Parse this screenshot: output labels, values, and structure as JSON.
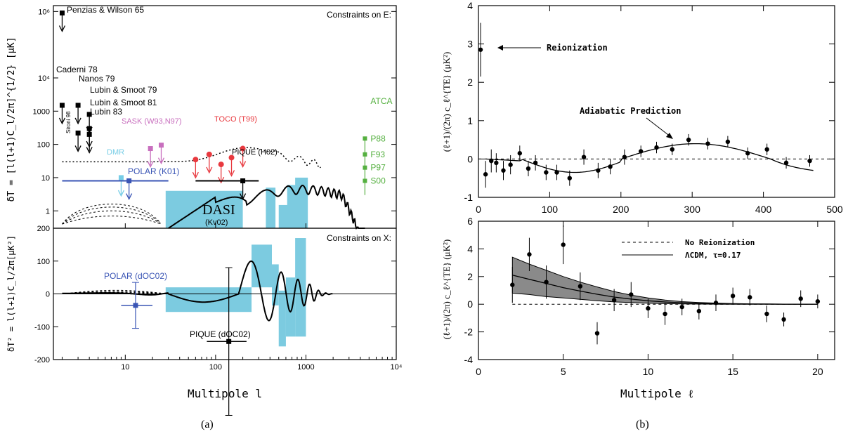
{
  "captions": {
    "a": "(a)",
    "b": "(b)"
  },
  "colors": {
    "dasi": "#7ccbe0",
    "toco": "#e8393f",
    "sask": "#c86fbe",
    "atca": "#55b040",
    "polar": "#3a55b5",
    "dmr": "#77cde6",
    "black": "#000000"
  },
  "chart_data": [
    {
      "type": "scatter",
      "panel": "a-top",
      "title": "Constraints on E:",
      "ylabel": "δT = [l(l+1)C_l/2π]^{1/2} [μK]",
      "xscale": "log",
      "yscale": "log",
      "xlim": [
        1.6,
        10000
      ],
      "ylim": [
        0.3,
        1500000
      ],
      "yticks": [
        {
          "v": 1,
          "l": "1"
        },
        {
          "v": 10,
          "l": "10"
        },
        {
          "v": 100,
          "l": "100"
        },
        {
          "v": 1000,
          "l": "1000"
        },
        {
          "v": 10000,
          "l": "10⁴"
        },
        {
          "v": 1000000,
          "l": "10⁶"
        }
      ],
      "upper_limits": [
        {
          "label": "Penzias & Wilson 65",
          "l": 2,
          "y": 900000,
          "color": "#000000"
        },
        {
          "label": "Caderni 78",
          "l": 2,
          "y": 1500,
          "color": "#000000"
        },
        {
          "label": "Nanos 79",
          "l": 3,
          "y": 1500,
          "color": "#000000"
        },
        {
          "label": "Lubin & Smoot 79",
          "l": 4,
          "y": 800,
          "color": "#000000"
        },
        {
          "label": "Lubin & Smoot 81",
          "l": 4,
          "y": 300,
          "color": "#000000"
        },
        {
          "label": "Lubin 83",
          "l": 4,
          "y": 200,
          "color": "#000000"
        },
        {
          "label": "Sironi 98",
          "l": 3,
          "y": 220,
          "color": "#000000"
        },
        {
          "label": "SASK (W93,N97)",
          "l": 19,
          "y": 75,
          "color": "#c86fbe"
        },
        {
          "label": "",
          "l": 25,
          "y": 95,
          "color": "#c86fbe"
        },
        {
          "label": "TOCO (T99)",
          "l": 60,
          "y": 35,
          "color": "#e8393f"
        },
        {
          "label": "",
          "l": 85,
          "y": 50,
          "color": "#e8393f"
        },
        {
          "label": "",
          "l": 115,
          "y": 25,
          "color": "#e8393f"
        },
        {
          "label": "",
          "l": 150,
          "y": 40,
          "color": "#e8393f"
        },
        {
          "label": "",
          "l": 200,
          "y": 75,
          "color": "#e8393f"
        },
        {
          "label": "DMR",
          "l": 9,
          "y": 10,
          "color": "#77cde6"
        },
        {
          "label": "POLAR (K01)",
          "l": 11,
          "y": 8,
          "color": "#3a55b5"
        },
        {
          "label": "PIQUE (H02)",
          "l": 200,
          "y": 8,
          "color": "#000000"
        }
      ],
      "atca": {
        "label": "ATCA",
        "l": 4500,
        "points": [
          {
            "label": "P88",
            "y": 150
          },
          {
            "label": "F93",
            "y": 50
          },
          {
            "label": "P97",
            "y": 20
          },
          {
            "label": "S00",
            "y": 8
          }
        ]
      },
      "dasi_label": "DASI",
      "dasi_sublabel": "(Kv02)"
    },
    {
      "type": "line",
      "panel": "a-bottom",
      "title": "Constraints on X:",
      "ylabel": "δT² = l(l+1)C_l/2π[μK²]",
      "xlabel": "Multipole l",
      "xscale": "log",
      "xlim": [
        1.6,
        10000
      ],
      "ylim": [
        -200,
        200
      ],
      "xticks": [
        {
          "v": 10,
          "l": "10"
        },
        {
          "v": 100,
          "l": "100"
        },
        {
          "v": 1000,
          "l": "1000"
        },
        {
          "v": 10000,
          "l": "10⁴"
        }
      ],
      "yticks": [
        -200,
        -100,
        0,
        100,
        200
      ],
      "points": [
        {
          "label": "POLAR (dOC02)",
          "l": 13,
          "y": -35,
          "yerr": 70,
          "color": "#3a55b5"
        },
        {
          "label": "PIQUE (dOC02)",
          "l": 140,
          "y": -145,
          "yerr": 225,
          "color": "#000000"
        }
      ]
    },
    {
      "type": "scatter",
      "panel": "b-top",
      "annotations": [
        "Reionization",
        "Adiabatic Prediction"
      ],
      "ylabel": "(ℓ+1)/(2π) c_ℓ^{TE} (μK²)",
      "xlim": [
        0,
        500
      ],
      "ylim": [
        -1,
        4
      ],
      "xticks": [
        0,
        100,
        200,
        300,
        400,
        500
      ],
      "yticks": [
        -1,
        0,
        1,
        2,
        3,
        4
      ],
      "x": [
        3,
        10,
        18,
        25,
        35,
        45,
        58,
        70,
        80,
        95,
        110,
        128,
        148,
        168,
        185,
        205,
        228,
        250,
        272,
        295,
        322,
        350,
        378,
        405,
        432,
        465
      ],
      "y": [
        2.85,
        -0.4,
        -0.05,
        -0.1,
        -0.3,
        -0.15,
        0.15,
        -0.25,
        -0.1,
        -0.35,
        -0.35,
        -0.5,
        0.05,
        -0.3,
        -0.2,
        0.05,
        0.2,
        0.3,
        0.25,
        0.5,
        0.4,
        0.45,
        0.15,
        0.25,
        -0.1,
        -0.05
      ],
      "yerr": [
        0.7,
        0.35,
        0.3,
        0.25,
        0.25,
        0.25,
        0.2,
        0.2,
        0.2,
        0.2,
        0.2,
        0.2,
        0.2,
        0.2,
        0.2,
        0.2,
        0.15,
        0.15,
        0.15,
        0.15,
        0.15,
        0.15,
        0.15,
        0.15,
        0.15,
        0.15
      ]
    },
    {
      "type": "scatter",
      "panel": "b-bottom",
      "xlabel": "Multipole ℓ",
      "ylabel": "(ℓ+1)/(2π) c_ℓ^{TE} (μK²)",
      "xlim": [
        0,
        21
      ],
      "ylim": [
        -4,
        6
      ],
      "xticks": [
        0,
        5,
        10,
        15,
        20
      ],
      "yticks": [
        -4,
        -2,
        0,
        2,
        4,
        6
      ],
      "legend": [
        "No Reionization",
        "ΛCDM, τ=0.17"
      ],
      "x": [
        2,
        3,
        4,
        5,
        6,
        7,
        8,
        9,
        10,
        11,
        12,
        13,
        14,
        15,
        16,
        17,
        18,
        19,
        20
      ],
      "y": [
        1.4,
        3.6,
        1.6,
        4.3,
        1.3,
        -2.1,
        0.3,
        0.7,
        -0.3,
        -0.7,
        -0.2,
        -0.5,
        0.1,
        0.6,
        0.5,
        -0.7,
        -1.1,
        0.4,
        0.2
      ],
      "yerr": [
        1.3,
        1.2,
        1.2,
        1.4,
        1.0,
        0.8,
        0.8,
        0.9,
        0.7,
        0.8,
        0.6,
        0.6,
        0.6,
        0.6,
        0.6,
        0.6,
        0.5,
        0.6,
        0.5
      ],
      "band_x": [
        2,
        3,
        4,
        5,
        6,
        7,
        8,
        9,
        10,
        11,
        12,
        13,
        14,
        15,
        16,
        17,
        18,
        19,
        20
      ],
      "band_center": [
        2.1,
        1.8,
        1.5,
        1.2,
        0.95,
        0.72,
        0.52,
        0.37,
        0.25,
        0.16,
        0.1,
        0.06,
        0.04,
        0.02,
        0.01,
        0.01,
        0.0,
        0.0,
        0.0
      ],
      "band_low": [
        0.8,
        0.7,
        0.55,
        0.45,
        0.35,
        0.25,
        0.17,
        0.12,
        0.07,
        0.04,
        0.02,
        0.01,
        0.0,
        0.0,
        0.0,
        0.0,
        0.0,
        0.0,
        0.0
      ],
      "band_high": [
        3.4,
        2.9,
        2.45,
        2.0,
        1.6,
        1.25,
        0.92,
        0.66,
        0.45,
        0.3,
        0.19,
        0.12,
        0.08,
        0.05,
        0.03,
        0.02,
        0.01,
        0.0,
        0.0
      ]
    }
  ]
}
